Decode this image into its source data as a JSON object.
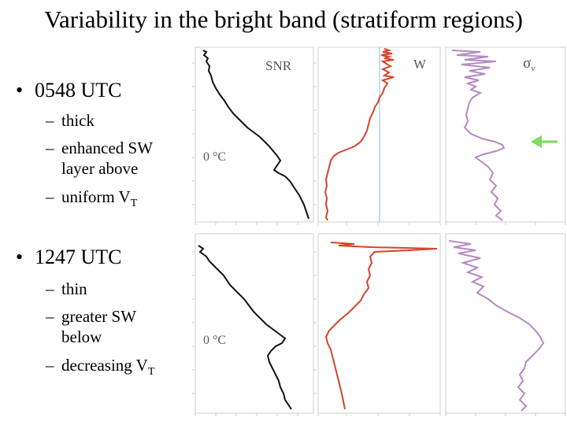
{
  "slide": {
    "title": "Variability in the bright band (stratiform regions)",
    "bullets": [
      {
        "label": "0548 UTC",
        "items": [
          {
            "dash": "–",
            "lines": [
              "thick"
            ]
          },
          {
            "dash": "–",
            "lines": [
              "enhanced SW",
              "layer above"
            ]
          },
          {
            "dash": "–",
            "text": "uniform V",
            "sub": "T"
          }
        ]
      },
      {
        "label": "1247 UTC",
        "items": [
          {
            "dash": "–",
            "lines": [
              "thin"
            ]
          },
          {
            "dash": "–",
            "lines": [
              "greater SW",
              "below"
            ]
          },
          {
            "dash": "–",
            "text": "decreasing V",
            "sub": "T"
          }
        ]
      }
    ],
    "bullet_glyph": "•"
  },
  "panels": {
    "labels": {
      "snr": "SNR",
      "w": "W",
      "sigma": "σ",
      "sigma_sub": "v"
    },
    "freezing_level": "0 °C",
    "colors": {
      "snr": "#111111",
      "w": "#d4452a",
      "sigma": "#b58ac4",
      "arrow": "#7fd95a",
      "w_ref": "#8fb8dd"
    }
  }
}
